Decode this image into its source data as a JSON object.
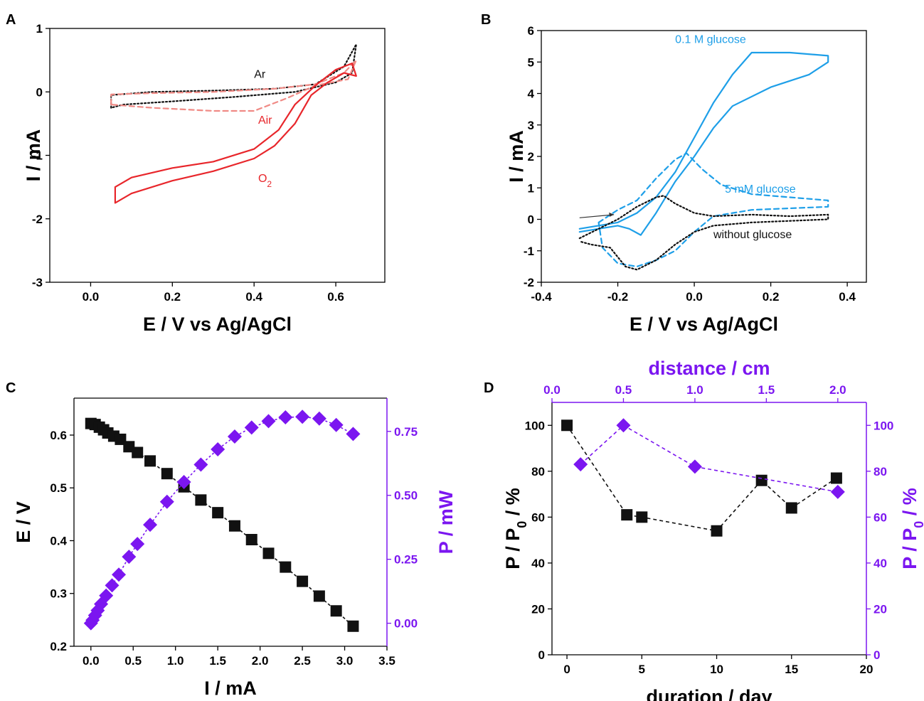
{
  "figure": {
    "panels": [
      "A",
      "B",
      "C",
      "D"
    ]
  },
  "colors": {
    "black": "#111111",
    "red": "#e8262b",
    "red_light": "#f08a85",
    "blue": "#1e9fe8",
    "purple": "#7b16f0"
  },
  "chart_data": [
    {
      "panel": "A",
      "type": "line",
      "xlabel": "E / V vs Ag/AgCl",
      "ylabel": "I / mA",
      "xlim": [
        -0.1,
        0.72
      ],
      "ylim": [
        -3,
        1
      ],
      "xticks": [
        "0.0",
        "0.2",
        "0.4",
        "0.6"
      ],
      "yticks": [
        "-3",
        "-2",
        "-1",
        "0",
        "1"
      ],
      "annotations": [
        {
          "text": "Ar",
          "x": 0.4,
          "y": 0.22,
          "color": "#111111"
        },
        {
          "text": "Air",
          "x": 0.41,
          "y": -0.5,
          "color": "#e8262b"
        },
        {
          "text": "O",
          "sub": "2",
          "x": 0.41,
          "y": -1.42,
          "color": "#e8262b"
        }
      ],
      "series": [
        {
          "name": "Ar",
          "style": "dotted",
          "color": "#111111",
          "x": [
            0.05,
            0.05,
            0.15,
            0.3,
            0.45,
            0.55,
            0.62,
            0.65,
            0.64,
            0.6,
            0.5,
            0.35,
            0.2,
            0.08,
            0.05
          ],
          "y": [
            -0.25,
            -0.05,
            0.0,
            0.02,
            0.05,
            0.12,
            0.4,
            0.75,
            0.3,
            0.15,
            0.0,
            -0.08,
            -0.15,
            -0.2,
            -0.25
          ]
        },
        {
          "name": "Air",
          "style": "dashed",
          "color": "#f08a85",
          "x": [
            0.05,
            0.05,
            0.15,
            0.3,
            0.45,
            0.55,
            0.62,
            0.65,
            0.63,
            0.55,
            0.48,
            0.4,
            0.3,
            0.15,
            0.05
          ],
          "y": [
            -0.2,
            -0.04,
            -0.02,
            0.0,
            0.05,
            0.12,
            0.3,
            0.5,
            0.2,
            0.1,
            -0.1,
            -0.3,
            -0.3,
            -0.25,
            -0.2
          ]
        },
        {
          "name": "O2",
          "style": "solid",
          "color": "#e8262b",
          "x": [
            0.06,
            0.06,
            0.1,
            0.2,
            0.3,
            0.4,
            0.46,
            0.5,
            0.55,
            0.6,
            0.64,
            0.65,
            0.62,
            0.58,
            0.54,
            0.5,
            0.45,
            0.4,
            0.3,
            0.2,
            0.1,
            0.06
          ],
          "y": [
            -1.75,
            -1.5,
            -1.35,
            -1.2,
            -1.1,
            -0.9,
            -0.6,
            -0.2,
            0.1,
            0.35,
            0.45,
            0.25,
            0.3,
            0.15,
            -0.05,
            -0.5,
            -0.85,
            -1.05,
            -1.25,
            -1.4,
            -1.6,
            -1.75
          ]
        }
      ]
    },
    {
      "panel": "B",
      "type": "line",
      "xlabel": "E / V vs Ag/AgCl",
      "ylabel": "I / mA",
      "xlim": [
        -0.4,
        0.45
      ],
      "ylim": [
        -2,
        6
      ],
      "xticks": [
        "-0.4",
        "-0.2",
        "0.0",
        "0.2",
        "0.4"
      ],
      "yticks": [
        "-2",
        "-1",
        "0",
        "1",
        "2",
        "3",
        "4",
        "5",
        "6"
      ],
      "annotations": [
        {
          "text": "0.1 M glucose",
          "x": -0.05,
          "y": 5.6,
          "color": "#1e9fe8"
        },
        {
          "text": "5 mM glucose",
          "x": 0.08,
          "y": 0.85,
          "color": "#1e9fe8"
        },
        {
          "text": "without glucose",
          "x": 0.05,
          "y": -0.6,
          "color": "#111111"
        }
      ],
      "series": [
        {
          "name": "0.1 M glucose",
          "style": "solid",
          "color": "#1e9fe8",
          "x": [
            -0.3,
            -0.2,
            -0.15,
            -0.1,
            -0.05,
            0.0,
            0.05,
            0.1,
            0.15,
            0.25,
            0.35,
            0.35,
            0.3,
            0.2,
            0.1,
            0.05,
            0.0,
            -0.05,
            -0.1,
            -0.14,
            -0.17,
            -0.2,
            -0.25,
            -0.3
          ],
          "y": [
            -0.3,
            -0.1,
            0.2,
            0.7,
            1.5,
            2.6,
            3.7,
            4.6,
            5.3,
            5.3,
            5.2,
            5.0,
            4.6,
            4.2,
            3.6,
            2.9,
            2.0,
            1.2,
            0.2,
            -0.5,
            -0.3,
            -0.2,
            -0.3,
            -0.4
          ]
        },
        {
          "name": "5 mM glucose",
          "style": "dashed",
          "color": "#1e9fe8",
          "x": [
            -0.25,
            -0.2,
            -0.15,
            -0.1,
            -0.05,
            -0.02,
            0.02,
            0.07,
            0.15,
            0.25,
            0.35,
            0.35,
            0.25,
            0.15,
            0.05,
            0.0,
            -0.05,
            -0.1,
            -0.15,
            -0.2,
            -0.24,
            -0.25
          ],
          "y": [
            -0.1,
            0.3,
            0.6,
            1.3,
            1.9,
            2.1,
            1.6,
            1.1,
            0.8,
            0.7,
            0.6,
            0.4,
            0.35,
            0.3,
            0.1,
            -0.4,
            -1.0,
            -1.3,
            -1.5,
            -1.4,
            -0.9,
            -0.1
          ]
        },
        {
          "name": "without glucose",
          "style": "dotted",
          "color": "#111111",
          "x": [
            -0.3,
            -0.25,
            -0.2,
            -0.15,
            -0.1,
            -0.08,
            -0.05,
            0.0,
            0.05,
            0.15,
            0.25,
            0.35,
            0.35,
            0.25,
            0.15,
            0.05,
            0.0,
            -0.05,
            -0.1,
            -0.15,
            -0.18,
            -0.22,
            -0.27,
            -0.3
          ],
          "y": [
            -0.6,
            -0.3,
            0.0,
            0.4,
            0.7,
            0.75,
            0.5,
            0.2,
            0.1,
            0.15,
            0.1,
            0.15,
            0.0,
            -0.05,
            -0.1,
            -0.2,
            -0.4,
            -0.8,
            -1.3,
            -1.6,
            -1.5,
            -0.9,
            -0.8,
            -0.7
          ]
        }
      ]
    },
    {
      "panel": "C",
      "type": "scatter",
      "xlabel": "I / mA",
      "ylabel": "E / V",
      "y2label": "P / mW",
      "xlim": [
        -0.2,
        3.5
      ],
      "ylim": [
        0.2,
        0.67
      ],
      "y2lim": [
        -0.09,
        0.88
      ],
      "xticks": [
        "0.0",
        "0.5",
        "1.0",
        "1.5",
        "2.0",
        "2.5",
        "3.0",
        "3.5"
      ],
      "yticks": [
        "0.2",
        "0.3",
        "0.4",
        "0.5",
        "0.6"
      ],
      "y2ticks": [
        "0.00",
        "0.25",
        "0.50",
        "0.75"
      ],
      "series": [
        {
          "name": "E",
          "axis": "left",
          "marker": "square",
          "color": "#111111",
          "x": [
            0.0,
            0.05,
            0.1,
            0.15,
            0.2,
            0.27,
            0.35,
            0.45,
            0.55,
            0.7,
            0.9,
            1.1,
            1.3,
            1.5,
            1.7,
            1.9,
            2.1,
            2.3,
            2.5,
            2.7,
            2.9,
            3.1
          ],
          "y": [
            0.622,
            0.62,
            0.615,
            0.61,
            0.604,
            0.598,
            0.592,
            0.578,
            0.567,
            0.551,
            0.527,
            0.502,
            0.477,
            0.453,
            0.428,
            0.402,
            0.376,
            0.35,
            0.323,
            0.295,
            0.267,
            0.238
          ]
        },
        {
          "name": "P",
          "axis": "right",
          "marker": "diamond",
          "color": "#7b16f0",
          "x": [
            0.0,
            0.02,
            0.05,
            0.08,
            0.12,
            0.18,
            0.25,
            0.33,
            0.45,
            0.55,
            0.7,
            0.9,
            1.1,
            1.3,
            1.5,
            1.7,
            1.9,
            2.1,
            2.3,
            2.5,
            2.7,
            2.9,
            3.1
          ],
          "y": [
            0.0,
            0.012,
            0.031,
            0.05,
            0.075,
            0.108,
            0.148,
            0.19,
            0.26,
            0.31,
            0.385,
            0.475,
            0.552,
            0.62,
            0.68,
            0.73,
            0.765,
            0.79,
            0.805,
            0.807,
            0.8,
            0.775,
            0.74
          ]
        }
      ]
    },
    {
      "panel": "D",
      "type": "scatter",
      "xlabel": "duration / day",
      "x2label": "distance / cm",
      "ylabel": "P / P",
      "ylabel_sub": "0",
      "ylabel_suffix": " / %",
      "y2label": "P / P",
      "y2label_sub": "0",
      "y2label_suffix": " / %",
      "xlim": [
        -1,
        20
      ],
      "x2lim": [
        0.0,
        2.2
      ],
      "ylim": [
        0,
        110
      ],
      "xticks": [
        "0",
        "5",
        "10",
        "15",
        "20"
      ],
      "x2ticks": [
        "0.0",
        "0.5",
        "1.0",
        "1.5",
        "2.0"
      ],
      "yticks": [
        "0",
        "20",
        "40",
        "60",
        "80",
        "100"
      ],
      "y2ticks": [
        "0",
        "20",
        "40",
        "60",
        "80",
        "100"
      ],
      "series": [
        {
          "name": "duration",
          "axis": "bottom-left",
          "marker": "square",
          "color": "#111111",
          "x": [
            0,
            4,
            5,
            10,
            13,
            15,
            18
          ],
          "y": [
            100,
            61,
            60,
            54,
            76,
            64,
            77
          ]
        },
        {
          "name": "distance",
          "axis": "top-right",
          "marker": "diamond",
          "color": "#7b16f0",
          "x": [
            0.2,
            0.5,
            1.0,
            2.0
          ],
          "y": [
            83,
            100,
            82,
            71
          ]
        }
      ]
    }
  ]
}
